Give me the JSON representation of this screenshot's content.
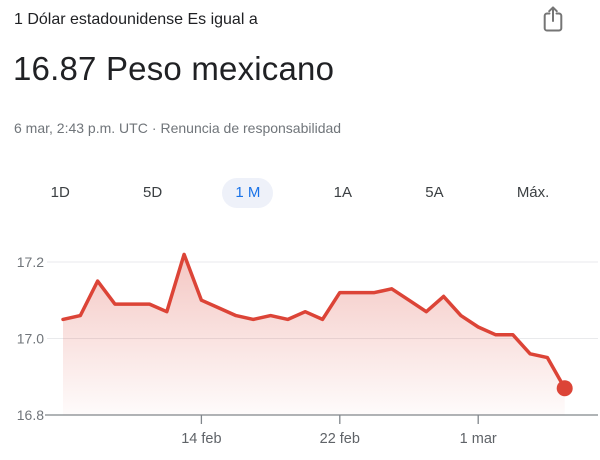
{
  "header": {
    "subtitle": "1 Dólar estadounidense Es igual a",
    "rate": "16.87 Peso mexicano",
    "meta": "6 mar, 2:43 p.m. UTC",
    "separator": "·",
    "disclaimer": "Renuncia de responsabilidad",
    "share_icon": "share-icon"
  },
  "tabs": [
    {
      "label": "1D",
      "selected": false
    },
    {
      "label": "5D",
      "selected": false
    },
    {
      "label": "1 M",
      "selected": true
    },
    {
      "label": "1A",
      "selected": false
    },
    {
      "label": "5A",
      "selected": false
    },
    {
      "label": "Máx.",
      "selected": false
    }
  ],
  "colors": {
    "accent_blue": "#1a73e8",
    "selected_pill_bg": "#eef1f9",
    "primary_text": "#202124",
    "secondary_text": "#70757a",
    "tab_text": "#3c4043",
    "line_red": "#dc4437",
    "gridline": "#e9eaec",
    "axis": "#80868b"
  },
  "chart_data": {
    "type": "area",
    "title": "USD to MXN exchange rate, 1 month",
    "x_unit": "days since 6 feb",
    "x_range_days": 29,
    "values": [
      17.05,
      17.06,
      17.15,
      17.09,
      17.09,
      17.09,
      17.07,
      17.22,
      17.1,
      17.08,
      17.06,
      17.05,
      17.06,
      17.05,
      17.07,
      17.05,
      17.12,
      17.12,
      17.12,
      17.13,
      17.1,
      17.07,
      17.11,
      17.06,
      17.03,
      17.01,
      17.01,
      16.96,
      16.95,
      16.87
    ],
    "last_value": 16.87,
    "y_ticks": [
      17.2,
      17.0,
      16.8
    ],
    "y_baseline": 16.8,
    "x_ticks": [
      {
        "day": 8,
        "label": "14 feb"
      },
      {
        "day": 16,
        "label": "22 feb"
      },
      {
        "day": 24,
        "label": "1 mar"
      }
    ],
    "grid": true,
    "legend": "none",
    "line_color": "#dc4437",
    "fill_top": "rgba(219,68,55,0.30)",
    "fill_bottom": "rgba(219,68,55,0.02)",
    "end_dot": true
  }
}
